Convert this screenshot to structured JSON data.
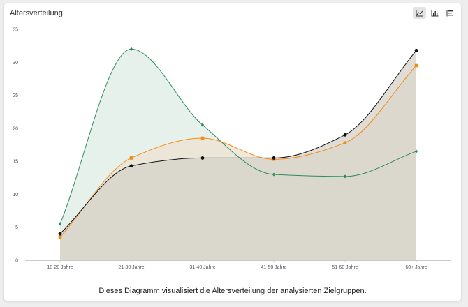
{
  "card": {
    "title": "Altersverteilung",
    "caption": "Dieses Diagramm visualisiert die Altersverteilung der analysierten Zielgruppen."
  },
  "toolbar": {
    "buttons": [
      {
        "icon": "line-chart-icon",
        "active": true
      },
      {
        "icon": "bar-chart-icon",
        "active": false
      },
      {
        "icon": "stacked-bar-icon",
        "active": false
      }
    ]
  },
  "chart_data": {
    "type": "area",
    "title": "Altersverteilung",
    "xlabel": "",
    "ylabel": "",
    "categories": [
      "18-20 Jahre",
      "21-30 Jahre",
      "31-40 Jahre",
      "41-50 Jahre",
      "51-60 Jahre",
      "60+ Jahre"
    ],
    "ylim": [
      0,
      35
    ],
    "yticks": [
      0,
      5,
      10,
      15,
      20,
      25,
      30,
      35
    ],
    "grid": false,
    "legend": "none",
    "series": [
      {
        "values": [
          5.5,
          32,
          20.5,
          13,
          12.7,
          16.5
        ],
        "color": "#2e8b62",
        "fill": "#dfece6",
        "marker": "diamond"
      },
      {
        "values": [
          3.5,
          15.5,
          18.5,
          15.3,
          17.8,
          29.5
        ],
        "color": "#f28b16",
        "fill": "#ede1d2",
        "marker": "square"
      },
      {
        "values": [
          4,
          14.3,
          15.5,
          15.5,
          19,
          31.8
        ],
        "color": "#111111",
        "fill": "#d4d2c8",
        "marker": "circle"
      }
    ]
  }
}
